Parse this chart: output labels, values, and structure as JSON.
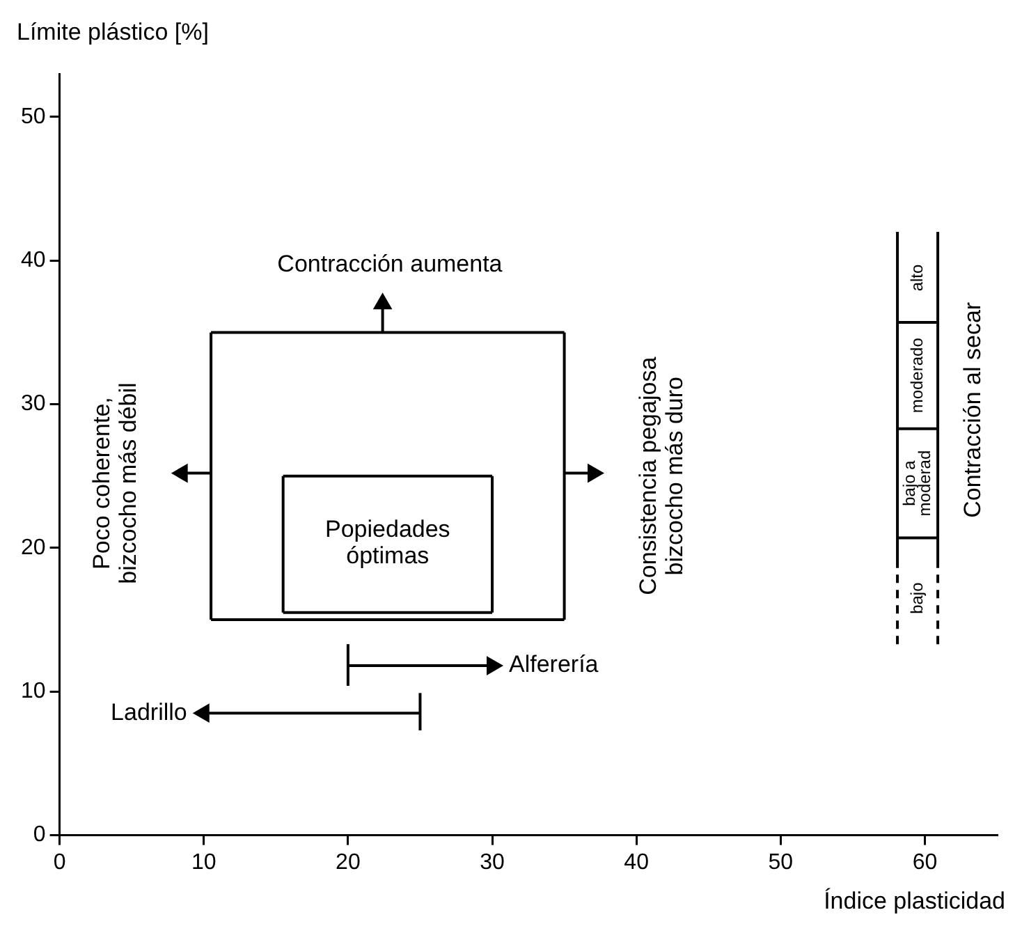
{
  "chart_data": {
    "type": "line",
    "xlabel": "Índice plasticidad",
    "ylabel": "Límite plástico [%]",
    "xlim": [
      0,
      65
    ],
    "ylim": [
      0,
      53
    ],
    "xticks": [
      0,
      10,
      20,
      30,
      40,
      50,
      60
    ],
    "yticks": [
      0,
      10,
      20,
      30,
      40,
      50
    ],
    "series": [
      {
        "color": "#000000",
        "x": [
          10.5,
          35
        ],
        "values": [
          15,
          15
        ]
      },
      {
        "color": "#000000",
        "x": [
          10.5,
          35
        ],
        "values": [
          35,
          35
        ]
      },
      {
        "color": "#000000",
        "x": [
          10.5,
          10.5
        ],
        "values": [
          15,
          35
        ]
      },
      {
        "color": "#000000",
        "x": [
          35,
          35
        ],
        "values": [
          15,
          35
        ]
      },
      {
        "color": "#000000",
        "x": [
          15.5,
          30
        ],
        "values": [
          15.5,
          15.5
        ]
      },
      {
        "color": "#000000",
        "x": [
          15.5,
          30
        ],
        "values": [
          25,
          25
        ]
      },
      {
        "color": "#000000",
        "x": [
          15.5,
          15.5
        ],
        "values": [
          15.5,
          25
        ]
      },
      {
        "color": "#000000",
        "x": [
          30,
          30
        ],
        "values": [
          15.5,
          25
        ]
      },
      {
        "color": "#000000",
        "marker": "triangle",
        "x": [
          22.4,
          22.4
        ],
        "values": [
          35,
          37
        ]
      },
      {
        "color": "#000000",
        "marker": "triangle",
        "x": [
          10.5,
          8.5
        ],
        "values": [
          25.2,
          25.2
        ]
      },
      {
        "color": "#000000",
        "marker": "triangle",
        "x": [
          35,
          37
        ],
        "values": [
          25.2,
          25.2
        ]
      },
      {
        "name": "Alferería",
        "color": "#000000",
        "marker": "triangle",
        "x": [
          20,
          30
        ],
        "values": [
          11.8,
          11.8
        ]
      },
      {
        "color": "#000000",
        "x": [
          20,
          20
        ],
        "values": [
          10.4,
          13.3
        ]
      },
      {
        "name": "Ladrillo",
        "color": "#000000",
        "marker": "triangle",
        "x": [
          25,
          10
        ],
        "values": [
          8.5,
          8.5
        ]
      },
      {
        "color": "#000000",
        "x": [
          25,
          25
        ],
        "values": [
          7.3,
          9.9
        ]
      },
      {
        "color": "#000000",
        "x": [
          58.1,
          58.1
        ],
        "values": [
          18.6,
          42
        ]
      },
      {
        "color": "#000000",
        "x": [
          60.9,
          60.9
        ],
        "values": [
          18.6,
          42
        ]
      },
      {
        "color": "#000000",
        "line_style": "dashed",
        "x": [
          58.1,
          58.1
        ],
        "values": [
          13.3,
          18.6
        ]
      },
      {
        "color": "#000000",
        "line_style": "dashed",
        "x": [
          60.9,
          60.9
        ],
        "values": [
          13.3,
          18.6
        ]
      },
      {
        "color": "#000000",
        "x": [
          58.1,
          60.9
        ],
        "values": [
          20.7,
          20.7
        ]
      },
      {
        "color": "#000000",
        "x": [
          58.1,
          60.9
        ],
        "values": [
          28.3,
          28.3
        ]
      },
      {
        "color": "#000000",
        "x": [
          58.1,
          60.9
        ],
        "values": [
          35.7,
          35.7
        ]
      }
    ],
    "annotations": [
      "Contracción aumenta",
      "Popiedades\nóptimas",
      "Poco coherente,\nbizcocho más débil",
      "Consistencia pegajosa\nbizcocho más duro",
      "Contracción al secar",
      "bajo",
      "bajo a\nmoderad",
      "moderado",
      "alto"
    ]
  }
}
